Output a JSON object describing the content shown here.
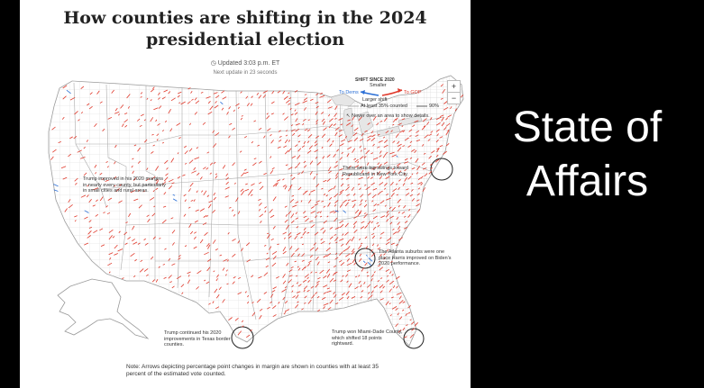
{
  "title": "How counties are shifting in the 2024 presidential election",
  "updated": "Updated 3:03 p.m. ET",
  "next_update": "Next update in 23 seconds",
  "zoom": {
    "in_label": "+",
    "out_label": "−"
  },
  "legend": {
    "heading": "SHIFT SINCE 2020",
    "smaller": "Smaller",
    "larger": "Larger shift",
    "to_dems": "To Dems",
    "to_gop": "To GOP",
    "counted_35": "At least 35% counted",
    "counted_90": "90%",
    "hover_hint": "Never over an area to show details.",
    "dem_color": "#2b6fd6",
    "gop_color": "#e0392b"
  },
  "annotations": [
    {
      "text": "Trump improved in his 2020 margins in nearly every county, but particularly in small cities and rural areas."
    },
    {
      "text": "There were big swings toward Republicans in New York City."
    },
    {
      "text": "The Atlanta suburbs were one place Harris improved on Biden's 2020 performance."
    },
    {
      "text": "Trump continued his 2020 improvements in Texas border counties."
    },
    {
      "text": "Trump won Miami-Dade County, which shifted 18 points rightward."
    }
  ],
  "footnote": "Note: Arrows depicting percentage point changes in margin are shown in counties with at least 35 percent of the estimated vote counted.",
  "side_text": {
    "line1": "State of",
    "line2": "Affairs"
  }
}
